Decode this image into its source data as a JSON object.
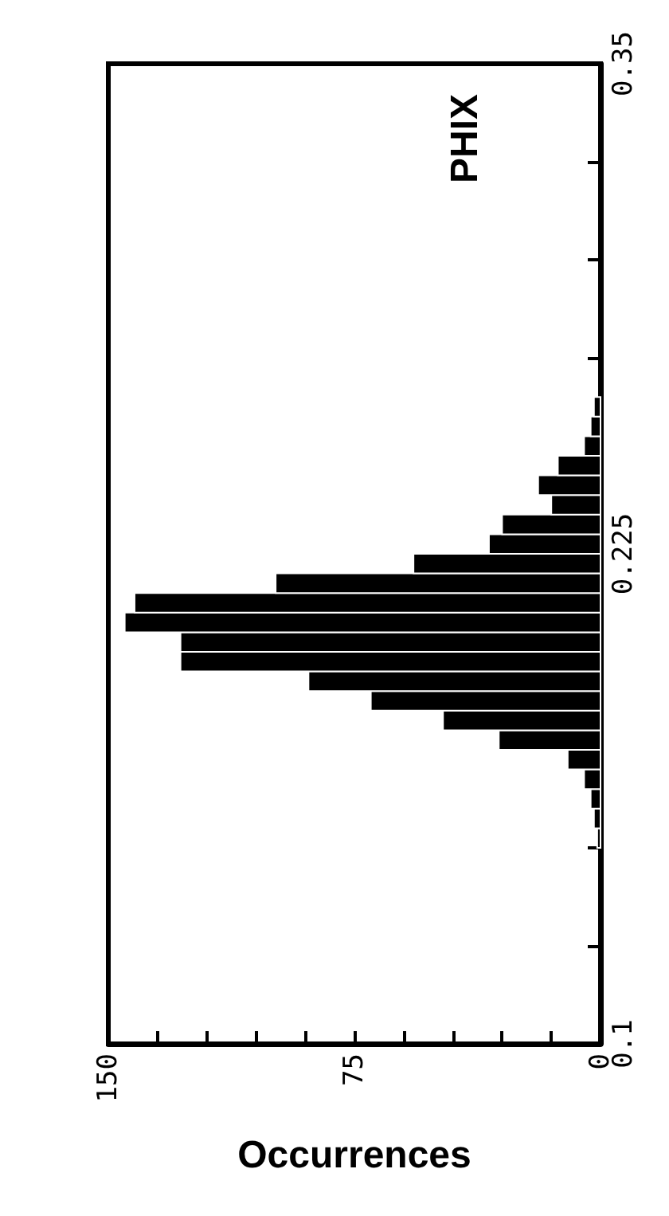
{
  "chart_data": {
    "type": "histogram",
    "orientation": "horizontal",
    "title": "PHIX",
    "xlabel": "Occurrences",
    "color": "#000000",
    "bins": [
      0.15,
      0.155,
      0.16,
      0.165,
      0.17,
      0.175,
      0.18,
      0.185,
      0.19,
      0.195,
      0.2,
      0.205,
      0.21,
      0.215,
      0.22,
      0.225,
      0.23,
      0.235,
      0.24,
      0.245,
      0.25,
      0.255,
      0.26,
      0.265
    ],
    "values": [
      1,
      2,
      3,
      5,
      10,
      31,
      48,
      70,
      89,
      128,
      128,
      145,
      142,
      99,
      57,
      34,
      30,
      15,
      19,
      13,
      5,
      3,
      2
    ],
    "ylim": [
      0.1,
      0.35
    ],
    "yticks": [
      0.1,
      {
        "value": 0.125,
        "label": null
      },
      {
        "value": 0.15,
        "label": null
      },
      {
        "value": 0.175,
        "label": null
      },
      {
        "value": 0.2,
        "label": null
      },
      0.225,
      {
        "value": 0.25,
        "label": null
      },
      {
        "value": 0.275,
        "label": null
      },
      {
        "value": 0.3,
        "label": null
      },
      {
        "value": 0.325,
        "label": null
      },
      0.35
    ],
    "xlim": [
      150,
      0
    ],
    "xticks": [
      0,
      {
        "value": 15,
        "label": null
      },
      {
        "value": 30,
        "label": null
      },
      {
        "value": 45,
        "label": null
      },
      {
        "value": 60,
        "label": null
      },
      75,
      {
        "value": 90,
        "label": null
      },
      {
        "value": 105,
        "label": null
      },
      {
        "value": 120,
        "label": null
      },
      {
        "value": 135,
        "label": null
      },
      150
    ],
    "grid": false
  }
}
